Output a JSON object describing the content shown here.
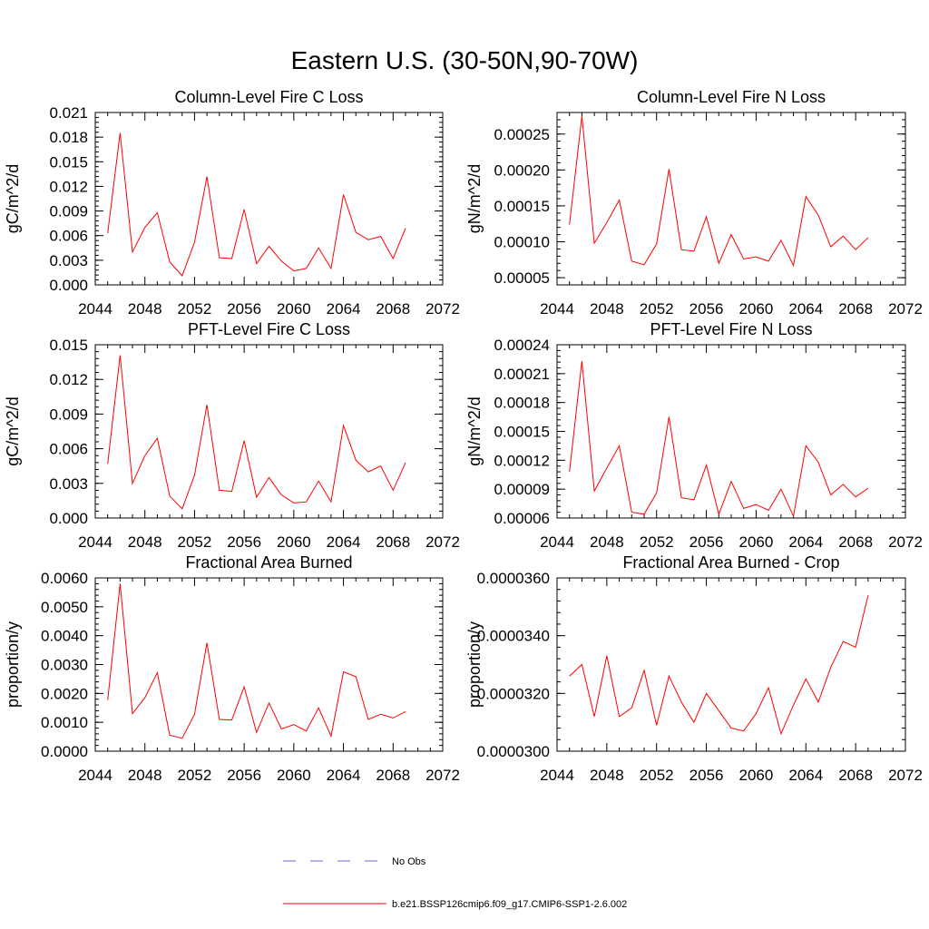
{
  "title": "Eastern U.S. (30-50N,90-70W)",
  "x_axis": {
    "ticks": [
      "2044",
      "2048",
      "2052",
      "2056",
      "2060",
      "2064",
      "2068",
      "2072"
    ],
    "xlim": [
      2044,
      2072
    ]
  },
  "legend": {
    "obs_label": "No Obs",
    "model_label": "b.e21.BSSP126cmip6.f09_g17.CMIP6-SSP1-2.6.002",
    "obs_color": "#6b6bd6",
    "model_color": "#ff0000"
  },
  "chart_data": [
    {
      "type": "line",
      "title": "Column-Level Fire C Loss",
      "ylabel": "gC/m^2/d",
      "ylim": [
        0,
        0.021
      ],
      "yticks": [
        "0.000",
        "0.003",
        "0.006",
        "0.009",
        "0.012",
        "0.015",
        "0.018",
        "0.021"
      ],
      "x": [
        2045,
        2046,
        2047,
        2048,
        2049,
        2050,
        2051,
        2052,
        2053,
        2054,
        2055,
        2056,
        2057,
        2058,
        2059,
        2060,
        2061,
        2062,
        2063,
        2064,
        2065,
        2066,
        2067,
        2068,
        2069
      ],
      "values": [
        0.0063,
        0.0185,
        0.004,
        0.007,
        0.0088,
        0.0028,
        0.0011,
        0.0052,
        0.0132,
        0.0033,
        0.0032,
        0.0092,
        0.0026,
        0.0047,
        0.0029,
        0.0017,
        0.002,
        0.0045,
        0.002,
        0.011,
        0.0064,
        0.0055,
        0.0059,
        0.0032,
        0.0069
      ]
    },
    {
      "type": "line",
      "title": "Column-Level Fire N Loss",
      "ylabel": "gN/m^2/d",
      "ylim": [
        4e-05,
        0.00028
      ],
      "yticks": [
        "0.00005",
        "0.00010",
        "0.00015",
        "0.00020",
        "0.00025"
      ],
      "x": [
        2045,
        2046,
        2047,
        2048,
        2049,
        2050,
        2051,
        2052,
        2053,
        2054,
        2055,
        2056,
        2057,
        2058,
        2059,
        2060,
        2061,
        2062,
        2063,
        2064,
        2065,
        2066,
        2067,
        2068,
        2069
      ],
      "values": [
        0.000124,
        0.000275,
        9.8e-05,
        0.000127,
        0.000158,
        7.3e-05,
        6.8e-05,
        9.7e-05,
        0.000201,
        8.9e-05,
        8.7e-05,
        0.000135,
        7e-05,
        0.00011,
        7.6e-05,
        7.9e-05,
        7.3e-05,
        0.000102,
        6.7e-05,
        0.000163,
        0.000137,
        9.3e-05,
        0.000108,
        8.9e-05,
        0.000106
      ]
    },
    {
      "type": "line",
      "title": "PFT-Level Fire C Loss",
      "ylabel": "gC/m^2/d",
      "ylim": [
        0,
        0.015
      ],
      "yticks": [
        "0.000",
        "0.003",
        "0.006",
        "0.009",
        "0.012",
        "0.015"
      ],
      "x": [
        2045,
        2046,
        2047,
        2048,
        2049,
        2050,
        2051,
        2052,
        2053,
        2054,
        2055,
        2056,
        2057,
        2058,
        2059,
        2060,
        2061,
        2062,
        2063,
        2064,
        2065,
        2066,
        2067,
        2068,
        2069
      ],
      "values": [
        0.0047,
        0.0141,
        0.003,
        0.0054,
        0.0069,
        0.0019,
        0.0008,
        0.0037,
        0.0098,
        0.0024,
        0.0023,
        0.0067,
        0.0018,
        0.0035,
        0.002,
        0.0013,
        0.0014,
        0.0032,
        0.0014,
        0.008,
        0.005,
        0.004,
        0.0045,
        0.0024,
        0.0048
      ]
    },
    {
      "type": "line",
      "title": "PFT-Level Fire N Loss",
      "ylabel": "gN/m^2/d",
      "ylim": [
        6e-05,
        0.00024
      ],
      "yticks": [
        "0.00006",
        "0.00009",
        "0.00012",
        "0.00015",
        "0.00018",
        "0.00021",
        "0.00024"
      ],
      "x": [
        2045,
        2046,
        2047,
        2048,
        2049,
        2050,
        2051,
        2052,
        2053,
        2054,
        2055,
        2056,
        2057,
        2058,
        2059,
        2060,
        2061,
        2062,
        2063,
        2064,
        2065,
        2066,
        2067,
        2068,
        2069
      ],
      "values": [
        0.000108,
        0.000223,
        8.8e-05,
        0.000112,
        0.000135,
        6.6e-05,
        6.4e-05,
        8.6e-05,
        0.000165,
        8.1e-05,
        7.9e-05,
        0.000115,
        6.4e-05,
        9.8e-05,
        7e-05,
        7.4e-05,
        6.8e-05,
        9e-05,
        6.2e-05,
        0.000135,
        0.000118,
        8.4e-05,
        9.5e-05,
        8.2e-05,
        9.1e-05
      ]
    },
    {
      "type": "line",
      "title": "Fractional Area Burned",
      "ylabel": "proportion/y",
      "ylim": [
        0,
        0.006
      ],
      "yticks": [
        "0.0000",
        "0.0010",
        "0.0020",
        "0.0030",
        "0.0040",
        "0.0050",
        "0.0060"
      ],
      "x": [
        2045,
        2046,
        2047,
        2048,
        2049,
        2050,
        2051,
        2052,
        2053,
        2054,
        2055,
        2056,
        2057,
        2058,
        2059,
        2060,
        2061,
        2062,
        2063,
        2064,
        2065,
        2066,
        2067,
        2068,
        2069
      ],
      "values": [
        0.00177,
        0.0058,
        0.0013,
        0.00185,
        0.00272,
        0.00055,
        0.00045,
        0.00128,
        0.00375,
        0.0011,
        0.00108,
        0.00223,
        0.00065,
        0.00167,
        0.00077,
        0.00092,
        0.0007,
        0.0015,
        0.00052,
        0.00275,
        0.00258,
        0.0011,
        0.00128,
        0.00115,
        0.00137
      ]
    },
    {
      "type": "line",
      "title": "Fractional Area Burned - Crop",
      "ylabel": "proportion/y",
      "ylim": [
        3e-05,
        3.6e-05
      ],
      "yticks": [
        "0.0000300",
        "0.0000320",
        "0.0000340",
        "0.0000360"
      ],
      "x": [
        2045,
        2046,
        2047,
        2048,
        2049,
        2050,
        2051,
        2052,
        2053,
        2054,
        2055,
        2056,
        2057,
        2058,
        2059,
        2060,
        2061,
        2062,
        2063,
        2064,
        2065,
        2066,
        2067,
        2068,
        2069
      ],
      "values": [
        3.26e-05,
        3.3e-05,
        3.12e-05,
        3.33e-05,
        3.12e-05,
        3.15e-05,
        3.28e-05,
        3.09e-05,
        3.26e-05,
        3.17e-05,
        3.1e-05,
        3.2e-05,
        3.14e-05,
        3.08e-05,
        3.07e-05,
        3.13e-05,
        3.22e-05,
        3.06e-05,
        3.16e-05,
        3.25e-05,
        3.17e-05,
        3.29e-05,
        3.38e-05,
        3.36e-05,
        3.54e-05
      ]
    }
  ]
}
